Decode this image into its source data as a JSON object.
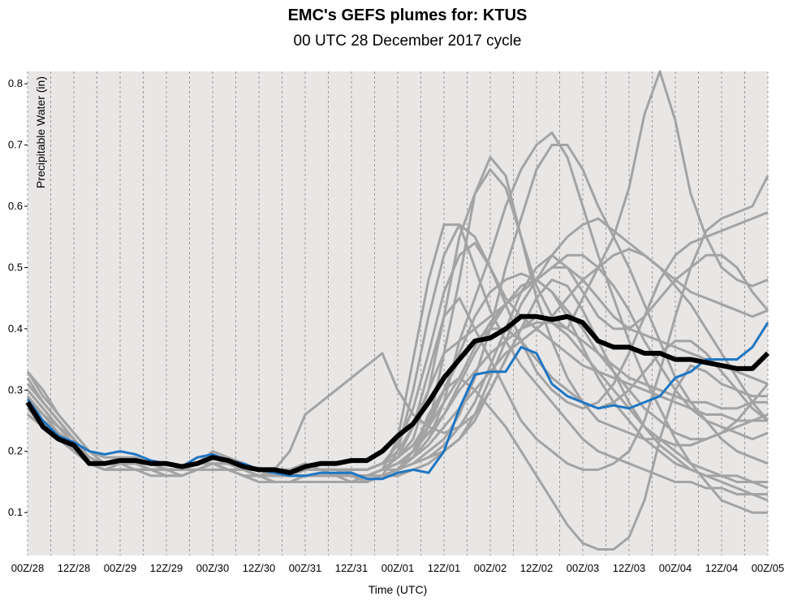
{
  "chart_title": "EMC's GEFS plumes for: KTUS",
  "chart_subtitle": "00 UTC 28 December 2017 cycle",
  "colors": {
    "background": "#e9e6e6",
    "members": "#a3a3a3",
    "mean": "#000000",
    "control": "#1e76c3",
    "grid": "#9a9a9a"
  },
  "chart_data": {
    "type": "line",
    "title": "EMC's GEFS plumes for: KTUS",
    "subtitle": "00 UTC 28 December 2017 cycle",
    "xlabel": "Time (UTC)",
    "ylabel": "Precipitable Water (in)",
    "x_ticks": [
      "00Z/28",
      "12Z/28",
      "00Z/29",
      "12Z/29",
      "00Z/30",
      "12Z/30",
      "00Z/31",
      "12Z/31",
      "00Z/01",
      "12Z/01",
      "00Z/02",
      "12Z/02",
      "00Z/03",
      "12Z/03",
      "00Z/04",
      "12Z/04",
      "00Z/05"
    ],
    "x_unit": "forecast hour (0-192, 6-hourly steps)",
    "xlim": [
      0,
      192
    ],
    "y_ticks": [
      0.1,
      0.2,
      0.3,
      0.4,
      0.5,
      0.6,
      0.7,
      0.8
    ],
    "ylim": [
      0.03,
      0.82
    ],
    "grid": "vertical dashed lines every 6 hours",
    "series_mean": {
      "values": [
        0.28,
        0.24,
        0.22,
        0.21,
        0.18,
        0.18,
        0.185,
        0.185,
        0.18,
        0.18,
        0.175,
        0.18,
        0.19,
        0.185,
        0.175,
        0.17,
        0.17,
        0.165,
        0.175,
        0.18,
        0.18,
        0.185,
        0.185,
        0.2,
        0.225,
        0.245,
        0.28,
        0.32,
        0.35,
        0.38,
        0.385,
        0.4,
        0.42,
        0.42,
        0.415,
        0.42,
        0.41,
        0.38,
        0.37,
        0.37,
        0.36,
        0.36,
        0.35,
        0.35,
        0.345,
        0.34,
        0.335,
        0.335,
        0.36
      ]
    },
    "series_control": {
      "values": [
        0.285,
        0.25,
        0.225,
        0.215,
        0.2,
        0.195,
        0.2,
        0.195,
        0.185,
        0.18,
        0.175,
        0.19,
        0.195,
        0.185,
        0.18,
        0.17,
        0.165,
        0.16,
        0.16,
        0.165,
        0.165,
        0.165,
        0.155,
        0.155,
        0.165,
        0.17,
        0.165,
        0.2,
        0.27,
        0.325,
        0.33,
        0.33,
        0.37,
        0.36,
        0.31,
        0.29,
        0.28,
        0.27,
        0.275,
        0.27,
        0.28,
        0.29,
        0.32,
        0.33,
        0.35,
        0.35,
        0.35,
        0.37,
        0.41
      ]
    },
    "series_members": [
      {
        "values": [
          0.33,
          0.29,
          0.26,
          0.23,
          0.2,
          0.18,
          0.19,
          0.19,
          0.18,
          0.17,
          0.17,
          0.18,
          0.2,
          0.19,
          0.18,
          0.17,
          0.17,
          0.17,
          0.18,
          0.17,
          0.16,
          0.15,
          0.15,
          0.16,
          0.2,
          0.3,
          0.42,
          0.52,
          0.57,
          0.55,
          0.5,
          0.45,
          0.42,
          0.4,
          0.38,
          0.36,
          0.34,
          0.33,
          0.32,
          0.31,
          0.3,
          0.29,
          0.28,
          0.27,
          0.26,
          0.26,
          0.25,
          0.25,
          0.26
        ]
      },
      {
        "values": [
          0.31,
          0.28,
          0.25,
          0.22,
          0.19,
          0.18,
          0.18,
          0.18,
          0.17,
          0.17,
          0.17,
          0.18,
          0.19,
          0.18,
          0.17,
          0.16,
          0.16,
          0.16,
          0.16,
          0.16,
          0.16,
          0.16,
          0.16,
          0.17,
          0.22,
          0.35,
          0.48,
          0.57,
          0.57,
          0.5,
          0.43,
          0.38,
          0.34,
          0.31,
          0.28,
          0.25,
          0.22,
          0.2,
          0.19,
          0.18,
          0.17,
          0.16,
          0.15,
          0.15,
          0.14,
          0.14,
          0.13,
          0.13,
          0.12
        ]
      },
      {
        "values": [
          0.3,
          0.27,
          0.24,
          0.22,
          0.19,
          0.18,
          0.18,
          0.18,
          0.18,
          0.17,
          0.17,
          0.18,
          0.19,
          0.18,
          0.17,
          0.16,
          0.16,
          0.16,
          0.17,
          0.17,
          0.17,
          0.17,
          0.17,
          0.18,
          0.19,
          0.22,
          0.3,
          0.42,
          0.55,
          0.62,
          0.66,
          0.63,
          0.55,
          0.45,
          0.38,
          0.32,
          0.28,
          0.25,
          0.24,
          0.23,
          0.22,
          0.22,
          0.21,
          0.21,
          0.22,
          0.23,
          0.24,
          0.25,
          0.25
        ]
      },
      {
        "values": [
          0.29,
          0.26,
          0.24,
          0.21,
          0.19,
          0.18,
          0.18,
          0.17,
          0.17,
          0.17,
          0.17,
          0.18,
          0.18,
          0.18,
          0.17,
          0.16,
          0.16,
          0.16,
          0.16,
          0.16,
          0.16,
          0.16,
          0.16,
          0.16,
          0.17,
          0.19,
          0.24,
          0.36,
          0.48,
          0.62,
          0.68,
          0.65,
          0.55,
          0.47,
          0.42,
          0.4,
          0.45,
          0.5,
          0.55,
          0.63,
          0.75,
          0.82,
          0.74,
          0.62,
          0.55,
          0.5,
          0.48,
          0.47,
          0.48
        ]
      },
      {
        "values": [
          0.28,
          0.26,
          0.23,
          0.21,
          0.18,
          0.17,
          0.18,
          0.18,
          0.17,
          0.17,
          0.17,
          0.17,
          0.18,
          0.18,
          0.17,
          0.16,
          0.15,
          0.15,
          0.16,
          0.16,
          0.16,
          0.16,
          0.16,
          0.17,
          0.18,
          0.19,
          0.22,
          0.28,
          0.38,
          0.45,
          0.52,
          0.6,
          0.66,
          0.7,
          0.72,
          0.68,
          0.6,
          0.52,
          0.45,
          0.38,
          0.32,
          0.27,
          0.22,
          0.18,
          0.15,
          0.12,
          0.11,
          0.1,
          0.1
        ]
      },
      {
        "values": [
          0.27,
          0.25,
          0.23,
          0.21,
          0.18,
          0.17,
          0.17,
          0.17,
          0.17,
          0.17,
          0.17,
          0.17,
          0.18,
          0.17,
          0.16,
          0.15,
          0.15,
          0.15,
          0.15,
          0.15,
          0.15,
          0.15,
          0.16,
          0.16,
          0.17,
          0.18,
          0.2,
          0.22,
          0.26,
          0.32,
          0.4,
          0.5,
          0.58,
          0.66,
          0.7,
          0.7,
          0.66,
          0.6,
          0.55,
          0.5,
          0.44,
          0.38,
          0.32,
          0.28,
          0.25,
          0.22,
          0.2,
          0.19,
          0.18
        ]
      },
      {
        "values": [
          0.32,
          0.28,
          0.25,
          0.22,
          0.19,
          0.18,
          0.18,
          0.18,
          0.17,
          0.17,
          0.17,
          0.18,
          0.19,
          0.18,
          0.17,
          0.17,
          0.17,
          0.17,
          0.17,
          0.17,
          0.17,
          0.16,
          0.16,
          0.17,
          0.19,
          0.24,
          0.33,
          0.42,
          0.45,
          0.4,
          0.35,
          0.3,
          0.25,
          0.22,
          0.2,
          0.18,
          0.17,
          0.17,
          0.18,
          0.2,
          0.25,
          0.33,
          0.42,
          0.5,
          0.56,
          0.58,
          0.59,
          0.6,
          0.65
        ]
      },
      {
        "values": [
          0.3,
          0.27,
          0.24,
          0.22,
          0.19,
          0.18,
          0.18,
          0.18,
          0.17,
          0.17,
          0.17,
          0.18,
          0.19,
          0.18,
          0.17,
          0.16,
          0.16,
          0.16,
          0.16,
          0.16,
          0.16,
          0.16,
          0.16,
          0.17,
          0.17,
          0.18,
          0.19,
          0.2,
          0.22,
          0.26,
          0.32,
          0.38,
          0.44,
          0.48,
          0.52,
          0.55,
          0.57,
          0.58,
          0.56,
          0.54,
          0.52,
          0.5,
          0.48,
          0.46,
          0.45,
          0.44,
          0.43,
          0.42,
          0.43
        ]
      },
      {
        "values": [
          0.28,
          0.25,
          0.22,
          0.2,
          0.18,
          0.17,
          0.17,
          0.17,
          0.17,
          0.16,
          0.16,
          0.17,
          0.18,
          0.17,
          0.17,
          0.16,
          0.16,
          0.16,
          0.16,
          0.16,
          0.16,
          0.16,
          0.15,
          0.16,
          0.17,
          0.2,
          0.26,
          0.3,
          0.32,
          0.3,
          0.27,
          0.24,
          0.2,
          0.16,
          0.12,
          0.08,
          0.05,
          0.04,
          0.04,
          0.06,
          0.12,
          0.22,
          0.3,
          0.34,
          0.33,
          0.31,
          0.3,
          0.29,
          0.29
        ]
      },
      {
        "values": [
          0.27,
          0.24,
          0.22,
          0.2,
          0.18,
          0.17,
          0.17,
          0.17,
          0.17,
          0.16,
          0.16,
          0.17,
          0.18,
          0.17,
          0.16,
          0.16,
          0.16,
          0.16,
          0.16,
          0.16,
          0.16,
          0.17,
          0.17,
          0.18,
          0.21,
          0.27,
          0.36,
          0.46,
          0.52,
          0.54,
          0.5,
          0.44,
          0.38,
          0.33,
          0.3,
          0.28,
          0.27,
          0.28,
          0.31,
          0.36,
          0.42,
          0.48,
          0.52,
          0.54,
          0.55,
          0.56,
          0.57,
          0.58,
          0.59
        ]
      },
      {
        "values": [
          0.31,
          0.28,
          0.25,
          0.22,
          0.19,
          0.18,
          0.18,
          0.18,
          0.17,
          0.17,
          0.17,
          0.18,
          0.19,
          0.18,
          0.17,
          0.16,
          0.17,
          0.2,
          0.26,
          0.28,
          0.3,
          0.32,
          0.34,
          0.36,
          0.3,
          0.26,
          0.24,
          0.23,
          0.24,
          0.26,
          0.3,
          0.35,
          0.4,
          0.42,
          0.41,
          0.39,
          0.36,
          0.33,
          0.3,
          0.27,
          0.24,
          0.22,
          0.2,
          0.18,
          0.17,
          0.16,
          0.16,
          0.15,
          0.15
        ]
      },
      {
        "values": [
          0.29,
          0.26,
          0.24,
          0.22,
          0.19,
          0.18,
          0.18,
          0.18,
          0.17,
          0.17,
          0.17,
          0.18,
          0.19,
          0.18,
          0.17,
          0.17,
          0.16,
          0.16,
          0.17,
          0.17,
          0.17,
          0.17,
          0.17,
          0.18,
          0.2,
          0.24,
          0.3,
          0.36,
          0.38,
          0.4,
          0.42,
          0.44,
          0.46,
          0.48,
          0.5,
          0.52,
          0.52,
          0.5,
          0.47,
          0.43,
          0.38,
          0.34,
          0.3,
          0.27,
          0.25,
          0.24,
          0.23,
          0.22,
          0.23
        ]
      },
      {
        "values": [
          0.26,
          0.24,
          0.22,
          0.2,
          0.18,
          0.17,
          0.17,
          0.17,
          0.17,
          0.16,
          0.16,
          0.17,
          0.17,
          0.17,
          0.16,
          0.15,
          0.15,
          0.15,
          0.15,
          0.15,
          0.15,
          0.15,
          0.16,
          0.16,
          0.17,
          0.18,
          0.19,
          0.21,
          0.24,
          0.28,
          0.34,
          0.4,
          0.46,
          0.5,
          0.52,
          0.5,
          0.46,
          0.42,
          0.4,
          0.4,
          0.42,
          0.45,
          0.48,
          0.5,
          0.52,
          0.52,
          0.5,
          0.46,
          0.43
        ]
      },
      {
        "values": [
          0.33,
          0.3,
          0.26,
          0.23,
          0.2,
          0.19,
          0.19,
          0.18,
          0.18,
          0.17,
          0.17,
          0.18,
          0.19,
          0.19,
          0.18,
          0.17,
          0.17,
          0.17,
          0.17,
          0.17,
          0.17,
          0.17,
          0.17,
          0.18,
          0.19,
          0.21,
          0.24,
          0.28,
          0.32,
          0.37,
          0.41,
          0.44,
          0.46,
          0.48,
          0.5,
          0.5,
          0.48,
          0.45,
          0.42,
          0.4,
          0.39,
          0.38,
          0.37,
          0.36,
          0.35,
          0.34,
          0.33,
          0.32,
          0.31
        ]
      },
      {
        "values": [
          0.28,
          0.25,
          0.23,
          0.21,
          0.18,
          0.17,
          0.17,
          0.17,
          0.17,
          0.16,
          0.16,
          0.17,
          0.18,
          0.17,
          0.16,
          0.16,
          0.15,
          0.15,
          0.15,
          0.15,
          0.15,
          0.15,
          0.15,
          0.16,
          0.16,
          0.17,
          0.18,
          0.2,
          0.22,
          0.25,
          0.3,
          0.35,
          0.4,
          0.45,
          0.48,
          0.47,
          0.43,
          0.38,
          0.33,
          0.28,
          0.24,
          0.21,
          0.19,
          0.17,
          0.16,
          0.15,
          0.14,
          0.13,
          0.13
        ]
      },
      {
        "values": [
          0.3,
          0.27,
          0.24,
          0.22,
          0.19,
          0.18,
          0.18,
          0.18,
          0.18,
          0.17,
          0.17,
          0.18,
          0.19,
          0.18,
          0.17,
          0.17,
          0.16,
          0.16,
          0.16,
          0.16,
          0.16,
          0.16,
          0.16,
          0.17,
          0.18,
          0.2,
          0.23,
          0.26,
          0.3,
          0.33,
          0.36,
          0.38,
          0.4,
          0.41,
          0.41,
          0.4,
          0.38,
          0.36,
          0.34,
          0.32,
          0.31,
          0.3,
          0.29,
          0.28,
          0.28,
          0.27,
          0.27,
          0.28,
          0.28
        ]
      },
      {
        "values": [
          0.27,
          0.25,
          0.23,
          0.2,
          0.18,
          0.17,
          0.17,
          0.17,
          0.17,
          0.17,
          0.16,
          0.17,
          0.18,
          0.17,
          0.16,
          0.16,
          0.15,
          0.15,
          0.15,
          0.15,
          0.15,
          0.15,
          0.15,
          0.16,
          0.17,
          0.19,
          0.22,
          0.26,
          0.31,
          0.36,
          0.4,
          0.44,
          0.47,
          0.48,
          0.46,
          0.42,
          0.37,
          0.32,
          0.28,
          0.25,
          0.22,
          0.2,
          0.18,
          0.17,
          0.16,
          0.16,
          0.15,
          0.15,
          0.14
        ]
      },
      {
        "values": [
          0.29,
          0.26,
          0.24,
          0.21,
          0.19,
          0.18,
          0.18,
          0.18,
          0.17,
          0.17,
          0.17,
          0.18,
          0.18,
          0.18,
          0.17,
          0.16,
          0.16,
          0.16,
          0.16,
          0.16,
          0.16,
          0.16,
          0.16,
          0.17,
          0.18,
          0.2,
          0.24,
          0.3,
          0.36,
          0.42,
          0.46,
          0.48,
          0.49,
          0.48,
          0.46,
          0.43,
          0.4,
          0.36,
          0.33,
          0.3,
          0.27,
          0.25,
          0.23,
          0.22,
          0.22,
          0.23,
          0.25,
          0.28,
          0.31
        ]
      },
      {
        "values": [
          0.31,
          0.28,
          0.25,
          0.22,
          0.19,
          0.18,
          0.18,
          0.18,
          0.18,
          0.17,
          0.17,
          0.18,
          0.19,
          0.18,
          0.18,
          0.17,
          0.17,
          0.17,
          0.17,
          0.17,
          0.17,
          0.17,
          0.17,
          0.18,
          0.19,
          0.21,
          0.25,
          0.3,
          0.35,
          0.38,
          0.4,
          0.4,
          0.38,
          0.35,
          0.32,
          0.3,
          0.28,
          0.27,
          0.28,
          0.3,
          0.33,
          0.36,
          0.38,
          0.38,
          0.36,
          0.33,
          0.3,
          0.27,
          0.25
        ]
      },
      {
        "values": [
          0.26,
          0.24,
          0.22,
          0.2,
          0.18,
          0.17,
          0.17,
          0.17,
          0.16,
          0.16,
          0.16,
          0.17,
          0.17,
          0.17,
          0.16,
          0.15,
          0.15,
          0.15,
          0.15,
          0.15,
          0.15,
          0.15,
          0.15,
          0.16,
          0.17,
          0.19,
          0.21,
          0.24,
          0.27,
          0.3,
          0.33,
          0.36,
          0.38,
          0.4,
          0.42,
          0.45,
          0.48,
          0.5,
          0.52,
          0.53,
          0.52,
          0.5,
          0.47,
          0.44,
          0.4,
          0.36,
          0.32,
          0.28,
          0.25
        ]
      }
    ]
  }
}
